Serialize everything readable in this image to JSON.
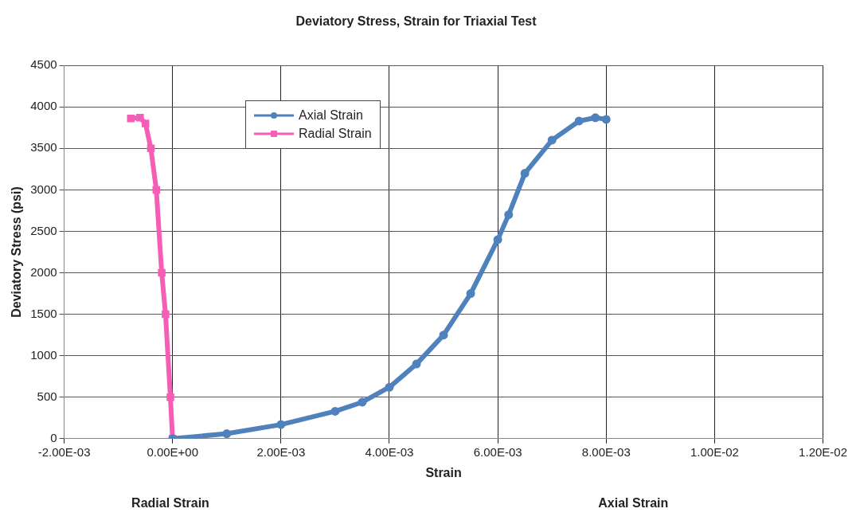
{
  "chart_data": {
    "type": "line",
    "title": "Deviatory Stress, Strain for Triaxial Test",
    "xlabel": "Strain",
    "ylabel": "Deviatory Stress (psi)",
    "annotations": [
      "Radial Strain",
      "Axial Strain"
    ],
    "xlim": [
      -0.002,
      0.012
    ],
    "xticks": [
      {
        "value": -0.002,
        "label": "-2.00E-03"
      },
      {
        "value": 0,
        "label": "0.00E+00"
      },
      {
        "value": 0.002,
        "label": "2.00E-03"
      },
      {
        "value": 0.004,
        "label": "4.00E-03"
      },
      {
        "value": 0.006,
        "label": "6.00E-03"
      },
      {
        "value": 0.008,
        "label": "8.00E-03"
      },
      {
        "value": 0.01,
        "label": "1.00E-02"
      },
      {
        "value": 0.012,
        "label": "1.20E-02"
      }
    ],
    "ylim": [
      0,
      4500
    ],
    "yticks": [
      0,
      500,
      1000,
      1500,
      2000,
      2500,
      3000,
      3500,
      4000,
      4500
    ],
    "grid": true,
    "legend": "top left",
    "line_style": "solid",
    "series": [
      {
        "name": "Axial Strain",
        "color": "#4f81bd",
        "marker": "circle",
        "x": [
          0,
          0.001,
          0.002,
          0.003,
          0.0035,
          0.004,
          0.0045,
          0.005,
          0.0055,
          0.006,
          0.0062,
          0.0065,
          0.007,
          0.0075,
          0.0078,
          0.008
        ],
        "values": [
          0,
          60,
          170,
          330,
          440,
          620,
          900,
          1250,
          1750,
          2400,
          2700,
          3200,
          3600,
          3830,
          3870,
          3850
        ]
      },
      {
        "name": "Radial Strain",
        "color": "#f45fb5",
        "marker": "square",
        "x": [
          0,
          -4e-05,
          -0.00013,
          -0.0002,
          -0.0003,
          -0.0004,
          -0.0005,
          -0.0006,
          -0.00077
        ],
        "values": [
          0,
          500,
          1500,
          2000,
          3000,
          3500,
          3800,
          3870,
          3860
        ]
      }
    ]
  }
}
